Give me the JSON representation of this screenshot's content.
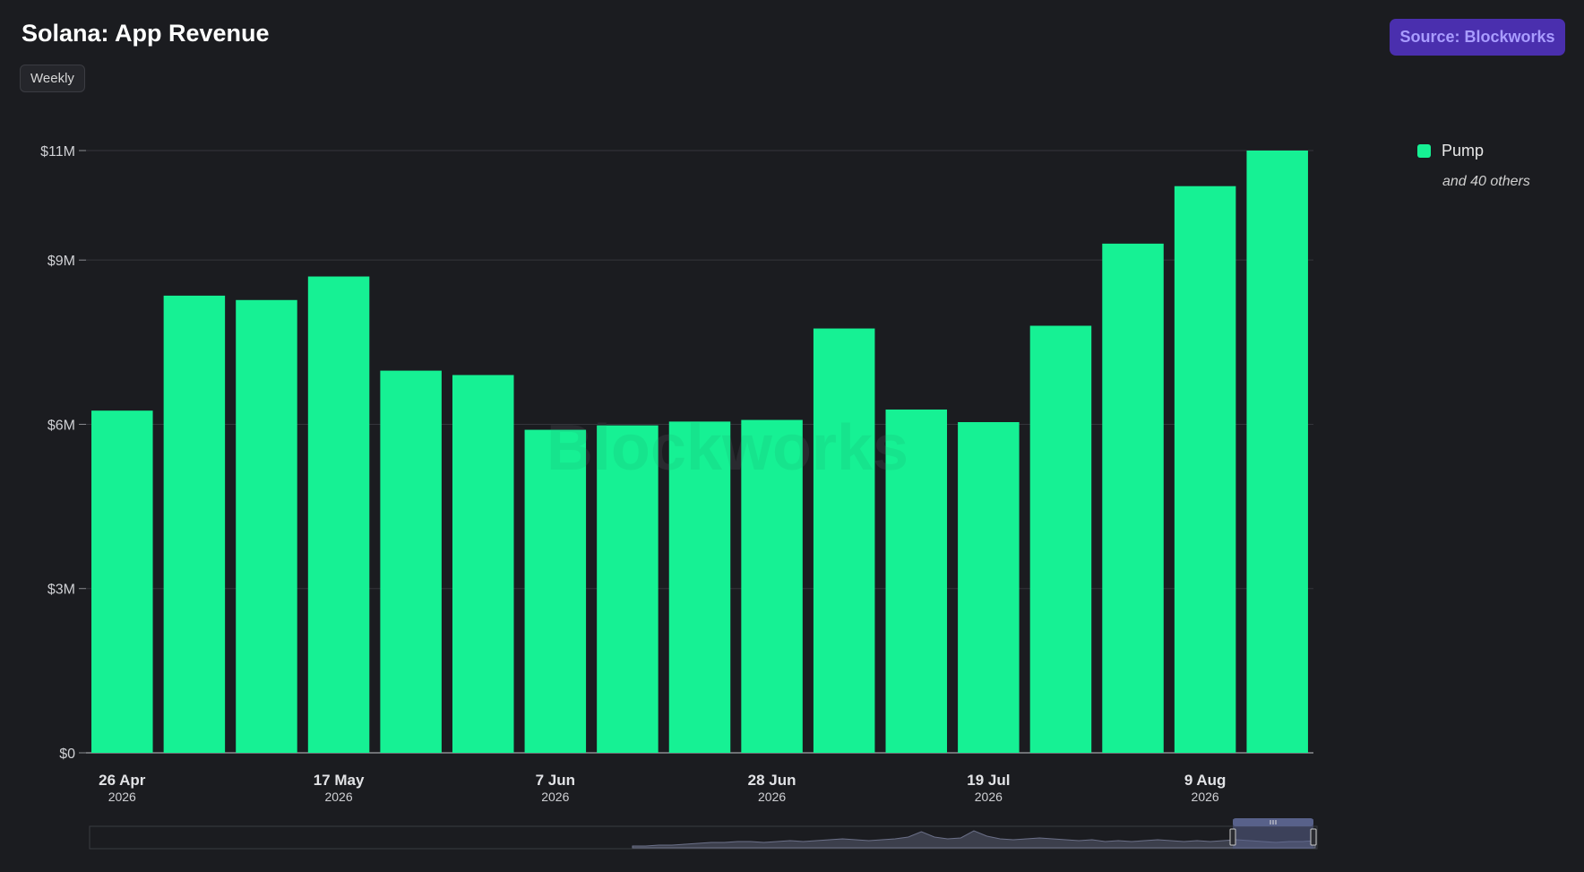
{
  "header": {
    "title": "Solana: App Revenue",
    "interval_label": "Weekly",
    "source_label": "Source: Blockworks"
  },
  "legend": {
    "items": [
      {
        "label": "Pump",
        "color": "#16f194"
      }
    ],
    "more_label": "and 40 others"
  },
  "watermark": "Blockworks",
  "colors": {
    "bar": "#16f194",
    "background": "#1b1c20",
    "accent": "#4a2fae"
  },
  "chart_data": {
    "type": "bar",
    "title": "Solana: App Revenue",
    "ylim": [
      0,
      11000000
    ],
    "y_ticks": [
      0,
      3000000,
      6000000,
      9000000,
      11000000
    ],
    "y_tick_labels": [
      "$0",
      "$3M",
      "$6M",
      "$9M",
      "$11M"
    ],
    "x_tick_labels": [
      {
        "index": 0,
        "label": "26 Apr",
        "sub": "2026"
      },
      {
        "index": 3,
        "label": "17 May",
        "sub": "2026"
      },
      {
        "index": 6,
        "label": "7 Jun",
        "sub": "2026"
      },
      {
        "index": 9,
        "label": "28 Jun",
        "sub": "2026"
      },
      {
        "index": 12,
        "label": "19 Jul",
        "sub": "2026"
      },
      {
        "index": 15,
        "label": "9 Aug",
        "sub": "2026"
      }
    ],
    "categories": [
      "2026-04-26",
      "2026-05-03",
      "2026-05-10",
      "2026-05-17",
      "2026-05-24",
      "2026-05-31",
      "2026-06-07",
      "2026-06-14",
      "2026-06-21",
      "2026-06-28",
      "2026-07-05",
      "2026-07-12",
      "2026-07-19",
      "2026-07-26",
      "2026-08-02",
      "2026-08-09",
      "2026-08-16"
    ],
    "series": [
      {
        "name": "Pump",
        "values": [
          6250000,
          8350000,
          8270000,
          8700000,
          6980000,
          6900000,
          5900000,
          5980000,
          6050000,
          6080000,
          7750000,
          6270000,
          6040000,
          7800000,
          9300000,
          10350000,
          11000000
        ]
      }
    ],
    "grid": true,
    "legend_position": "right"
  }
}
